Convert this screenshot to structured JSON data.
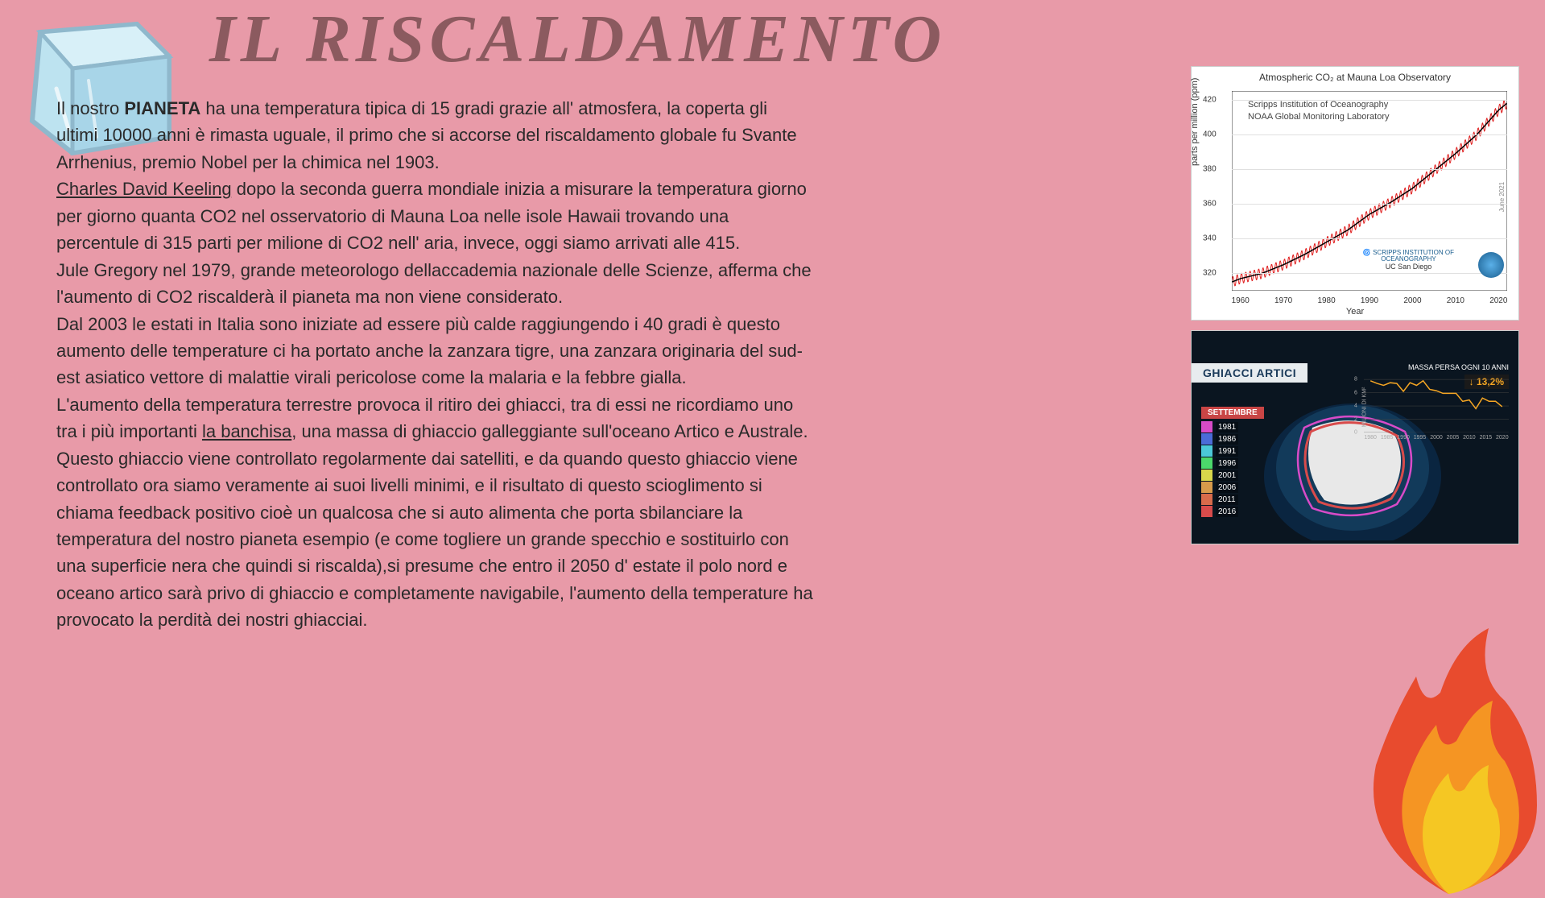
{
  "title": "IL RISCALDAMENTO",
  "body": {
    "p1_a": "Il nostro ",
    "p1_bold": "PIANETA",
    "p1_b": " ha una temperatura tipica di 15 gradi grazie all' atmosfera, la coperta gli ultimi 10000 anni è rimasta uguale, il primo che si accorse del riscaldamento globale fu Svante Arrhenius, premio Nobel per la chimica nel 1903.",
    "p2_u": "Charles David Keeling",
    "p2_b": " dopo la seconda guerra mondiale inizia a misurare la temperatura giorno per giorno quanta CO2 nel osservatorio di Mauna Loa nelle isole Hawaii trovando una percentule di 315 parti per milione di CO2 nell' aria, invece, oggi siamo arrivati alle 415.",
    "p3": "Jule Gregory nel 1979, grande meteorologo dellaccademia nazionale delle Scienze, afferma che l'aumento di CO2 riscalderà il pianeta ma non viene considerato.",
    "p4": "Dal 2003 le estati in Italia sono iniziate ad essere più calde raggiungendo i 40 gradi è questo aumento delle temperature ci ha portato anche la zanzara tigre, una zanzara originaria del sud-est asiatico vettore di malattie virali pericolose come la malaria e la febbre gialla.",
    "p5_a": "L'aumento della temperatura terrestre provoca il ritiro dei ghiacci, tra di essi ne ricordiamo uno tra i più importanti ",
    "p5_u": "la banchisa",
    "p5_b": ", una massa di ghiaccio galleggiante sull'oceano Artico e Australe.",
    "p6": "Questo ghiaccio viene controllato regolarmente dai satelliti, e da quando questo ghiaccio viene controllato ora siamo veramente ai suoi livelli minimi, e il risultato di questo scioglimento si chiama feedback positivo cioè un qualcosa che si auto alimenta che porta sbilanciare la temperatura del nostro pianeta esempio (e come togliere un grande specchio e sostituirlo con una superficie nera che quindi si riscalda),si presume che entro il 2050 d' estate il polo nord e oceano artico sarà privo di ghiaccio e completamente navigabile, l'aumento della temperature ha provocato la perdità dei nostri ghiacciai."
  },
  "chart1": {
    "type": "line",
    "title": "Atmospheric CO₂ at Mauna Loa Observatory",
    "sub1": "Scripps Institution of Oceanography",
    "sub2": "NOAA Global Monitoring Laboratory",
    "ylabel": "parts per million (ppm)",
    "xlabel": "Year",
    "xlim": [
      1958,
      2022
    ],
    "ylim": [
      310,
      425
    ],
    "xticks": [
      1960,
      1970,
      1980,
      1990,
      2000,
      2010,
      2020
    ],
    "yticks": [
      320,
      340,
      360,
      380,
      400,
      420
    ],
    "line_color": "#000000",
    "oscillation_color": "#e02020",
    "background_color": "#ffffff",
    "grid_color": "#e0e0e0",
    "logo1_line1": "SCRIPPS INSTITUTION OF",
    "logo1_line2": "OCEANOGRAPHY",
    "logo1_line3": "UC San Diego",
    "date_label": "June 2021",
    "points": [
      [
        1958,
        315
      ],
      [
        1960,
        317
      ],
      [
        1965,
        320
      ],
      [
        1970,
        325
      ],
      [
        1975,
        331
      ],
      [
        1980,
        338
      ],
      [
        1985,
        345
      ],
      [
        1990,
        354
      ],
      [
        1995,
        361
      ],
      [
        2000,
        369
      ],
      [
        2005,
        379
      ],
      [
        2010,
        389
      ],
      [
        2015,
        400
      ],
      [
        2020,
        414
      ],
      [
        2022,
        418
      ]
    ]
  },
  "chart2": {
    "header": "GHIACCI ARTICI",
    "massa_label": "MASSA PERSA OGNI 10 ANNI",
    "pct_arrow": "↓",
    "pct_value": "13,2%",
    "settembre": "SETTEMBRE",
    "years": [
      {
        "y": "1981",
        "c": "#d84bc8"
      },
      {
        "y": "1986",
        "c": "#4b6bd8"
      },
      {
        "y": "1991",
        "c": "#4bc8d8"
      },
      {
        "y": "1996",
        "c": "#4bd86b"
      },
      {
        "y": "2001",
        "c": "#d8d84b"
      },
      {
        "y": "2006",
        "c": "#d89b4b"
      },
      {
        "y": "2011",
        "c": "#d86b4b"
      },
      {
        "y": "2016",
        "c": "#d84b4b"
      }
    ],
    "mini": {
      "ylabel": "MILIONI DI KM²",
      "yticks": [
        0,
        2,
        4,
        6,
        8
      ],
      "xticks": [
        1980,
        1985,
        1990,
        1995,
        2000,
        2005,
        2010,
        2015,
        2020
      ],
      "line_color": "#f5a623",
      "points": [
        [
          1980,
          7.8
        ],
        [
          1982,
          7.4
        ],
        [
          1984,
          7.1
        ],
        [
          1986,
          7.5
        ],
        [
          1988,
          7.4
        ],
        [
          1990,
          6.2
        ],
        [
          1992,
          7.5
        ],
        [
          1994,
          7.1
        ],
        [
          1996,
          7.8
        ],
        [
          1998,
          6.5
        ],
        [
          2000,
          6.3
        ],
        [
          2002,
          5.9
        ],
        [
          2004,
          5.9
        ],
        [
          2006,
          5.9
        ],
        [
          2008,
          4.7
        ],
        [
          2010,
          4.9
        ],
        [
          2012,
          3.6
        ],
        [
          2014,
          5.2
        ],
        [
          2016,
          4.7
        ],
        [
          2018,
          4.7
        ],
        [
          2020,
          3.9
        ]
      ]
    }
  },
  "colors": {
    "page_bg": "#e89aa8",
    "title": "#8b5a5f",
    "text": "#2a2a2a"
  }
}
